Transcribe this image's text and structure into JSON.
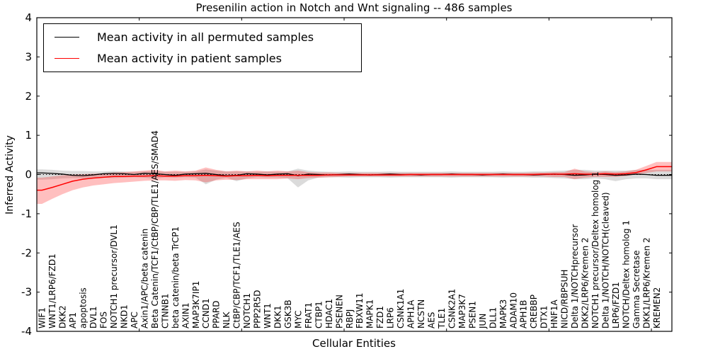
{
  "chart_data": {
    "type": "line",
    "title": "Presenilin action in Notch and Wnt signaling -- 486 samples",
    "xlabel": "Cellular Entities",
    "ylabel": "Inferred Activity",
    "ylim": [
      -4,
      4
    ],
    "yticks": [
      4,
      3,
      2,
      1,
      0,
      -1,
      -2,
      -3,
      -4
    ],
    "xticks_every": 10,
    "grid": false,
    "legend_position": "upper left",
    "zero_line": {
      "style": "dotted",
      "color": "#000000"
    },
    "categories": [
      "WIF1",
      "WNT1/LRP6/FZD1",
      "DKK2",
      "AP1",
      "apoptosis",
      "DVL1",
      "FOS",
      "NOTCH1 precursor/DVL1",
      "NKD1",
      "APC",
      "Axin1/APC/beta catenin",
      "Beta Catenin/TCF1/CtBP/CBP/TLE1/AES/SMAD4",
      "CTNNB1",
      "beta catenin/beta TrCP1",
      "AXIN1",
      "MAP3K7IP1",
      "CCND1",
      "PPARD",
      "NLK",
      "CtBP/CBP/TCF1/TLE1/AES",
      "NOTCH1",
      "PPP2R5D",
      "WNT1",
      "DKK1",
      "GSK3B",
      "MYC",
      "FRAT1",
      "CTBP1",
      "HDAC1",
      "PSENEN",
      "RBPJ",
      "FBXW11",
      "MAPK1",
      "FZD1",
      "LRP6",
      "CSNK1A1",
      "APH1A",
      "NCSTN",
      "AES",
      "TLE1",
      "CSNK2A1",
      "MAP3K7",
      "PSEN1",
      "JUN",
      "DLL1",
      "MAPK3",
      "ADAM10",
      "APH1B",
      "CREBBP",
      "DTX1",
      "HNF1A",
      "NICD/RBPSUH",
      "Delta 1/NOTCHprecursor",
      "DKK2/LRP6/Kremen 2",
      "NOTCH1 precursor/Deltex homolog 1",
      "Delta 1/NOTCH/NOTCH(cleaved)",
      "LRP6/FZD1",
      "NOTCH/Deltex homolog 1",
      "Gamma Secretase",
      "DKK1/LRP6/Kremen 2",
      "KREMEN2"
    ],
    "series": [
      {
        "name": "Mean activity in all permuted samples",
        "line_color": "#000000",
        "band_color": "#000000",
        "band_opacity": 0.14,
        "values": [
          0.04,
          0.03,
          0.01,
          -0.02,
          -0.03,
          -0.01,
          0.02,
          0.03,
          0.02,
          0.0,
          0.03,
          0.02,
          0.0,
          -0.02,
          0.01,
          0.02,
          0.03,
          0.0,
          -0.03,
          -0.02,
          0.02,
          0.01,
          -0.01,
          0.01,
          0.02,
          -0.03,
          0.01,
          0.0,
          -0.01,
          0.0,
          0.01,
          0.0,
          -0.01,
          0.0,
          0.01,
          0.0,
          0.0,
          -0.01,
          0.0,
          0.0,
          0.01,
          0.0,
          0.0,
          -0.01,
          0.0,
          0.01,
          0.0,
          0.0,
          -0.01,
          0.0,
          0.01,
          0.0,
          -0.02,
          -0.01,
          0.01,
          0.0,
          -0.02,
          -0.01,
          0.01,
          0.0,
          -0.02
        ],
        "band_upper": [
          0.13,
          0.12,
          0.1,
          0.09,
          0.09,
          0.08,
          0.08,
          0.09,
          0.08,
          0.07,
          0.08,
          0.09,
          0.07,
          0.07,
          0.07,
          0.08,
          0.13,
          0.1,
          0.08,
          0.08,
          0.08,
          0.07,
          0.08,
          0.07,
          0.08,
          0.15,
          0.1,
          0.08,
          0.07,
          0.07,
          0.08,
          0.07,
          0.07,
          0.07,
          0.08,
          0.07,
          0.07,
          0.07,
          0.07,
          0.07,
          0.08,
          0.07,
          0.07,
          0.07,
          0.07,
          0.08,
          0.07,
          0.07,
          0.08,
          0.08,
          0.09,
          0.1,
          0.12,
          0.12,
          0.1,
          0.1,
          0.1,
          0.1,
          0.12,
          0.12,
          0.12
        ],
        "band_lower": [
          -0.13,
          -0.12,
          -0.1,
          -0.09,
          -0.1,
          -0.08,
          -0.08,
          -0.09,
          -0.08,
          -0.07,
          -0.08,
          -0.11,
          -0.07,
          -0.08,
          -0.07,
          -0.08,
          -0.25,
          -0.13,
          -0.08,
          -0.17,
          -0.1,
          -0.07,
          -0.08,
          -0.08,
          -0.1,
          -0.33,
          -0.15,
          -0.08,
          -0.07,
          -0.07,
          -0.08,
          -0.07,
          -0.07,
          -0.07,
          -0.08,
          -0.07,
          -0.07,
          -0.07,
          -0.07,
          -0.07,
          -0.08,
          -0.07,
          -0.07,
          -0.07,
          -0.07,
          -0.08,
          -0.07,
          -0.07,
          -0.08,
          -0.08,
          -0.09,
          -0.1,
          -0.12,
          -0.12,
          -0.1,
          -0.12,
          -0.17,
          -0.12,
          -0.1,
          -0.1,
          -0.12
        ]
      },
      {
        "name": "Mean activity in patient samples",
        "line_color": "#ff0000",
        "band_color": "#ff0000",
        "band_opacity": 0.25,
        "values": [
          -0.4,
          -0.33,
          -0.25,
          -0.17,
          -0.12,
          -0.09,
          -0.07,
          -0.05,
          -0.05,
          -0.04,
          -0.04,
          -0.03,
          -0.04,
          -0.04,
          -0.03,
          -0.03,
          -0.02,
          -0.03,
          -0.04,
          -0.03,
          -0.03,
          -0.02,
          -0.03,
          -0.02,
          -0.02,
          -0.02,
          -0.02,
          -0.02,
          -0.01,
          -0.01,
          -0.01,
          -0.01,
          -0.01,
          -0.01,
          -0.01,
          -0.01,
          0.0,
          0.0,
          0.0,
          0.0,
          0.0,
          0.0,
          0.0,
          0.0,
          0.0,
          0.0,
          0.0,
          0.0,
          0.0,
          0.01,
          0.01,
          0.01,
          0.02,
          0.01,
          0.01,
          0.02,
          0.01,
          0.02,
          0.05,
          0.12,
          0.2
        ],
        "band_upper": [
          -0.08,
          -0.05,
          -0.02,
          0.0,
          0.01,
          0.02,
          0.03,
          0.05,
          0.06,
          0.08,
          0.1,
          0.12,
          0.08,
          0.1,
          0.08,
          0.1,
          0.18,
          0.12,
          0.08,
          0.1,
          0.08,
          0.1,
          0.08,
          0.1,
          0.08,
          0.1,
          0.06,
          0.05,
          0.05,
          0.04,
          0.04,
          0.04,
          0.04,
          0.04,
          0.04,
          0.04,
          0.04,
          0.04,
          0.04,
          0.04,
          0.04,
          0.04,
          0.04,
          0.04,
          0.04,
          0.04,
          0.04,
          0.04,
          0.05,
          0.05,
          0.06,
          0.06,
          0.15,
          0.08,
          0.06,
          0.08,
          0.06,
          0.08,
          0.12,
          0.22,
          0.32
        ],
        "band_lower": [
          -0.75,
          -0.62,
          -0.5,
          -0.4,
          -0.33,
          -0.28,
          -0.25,
          -0.22,
          -0.2,
          -0.18,
          -0.16,
          -0.15,
          -0.15,
          -0.16,
          -0.14,
          -0.15,
          -0.2,
          -0.15,
          -0.13,
          -0.14,
          -0.12,
          -0.12,
          -0.12,
          -0.12,
          -0.1,
          -0.12,
          -0.09,
          -0.08,
          -0.07,
          -0.06,
          -0.05,
          -0.05,
          -0.05,
          -0.05,
          -0.05,
          -0.05,
          -0.05,
          -0.05,
          -0.05,
          -0.05,
          -0.05,
          -0.05,
          -0.05,
          -0.05,
          -0.05,
          -0.05,
          -0.05,
          -0.05,
          -0.05,
          -0.05,
          -0.06,
          -0.06,
          -0.12,
          -0.08,
          -0.06,
          -0.06,
          -0.06,
          -0.04,
          0.0,
          0.04,
          0.08
        ]
      }
    ]
  }
}
